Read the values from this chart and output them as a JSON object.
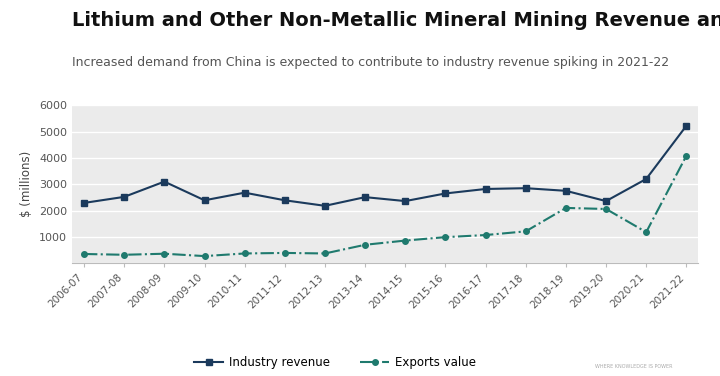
{
  "title": "Lithium and Other Non-Metallic Mineral Mining Revenue and Exports",
  "subtitle": "Increased demand from China is expected to contribute to industry revenue spiking in 2021-22",
  "ylabel": "$ (millions)",
  "fig_bg_color": "#ffffff",
  "plot_bg_color": "#ebebeb",
  "categories": [
    "2006-07",
    "2007-08",
    "2008-09",
    "2009-10",
    "2010-11",
    "2011-12",
    "2012-13",
    "2013-14",
    "2014-15",
    "2015-16",
    "2016-17",
    "2017-18",
    "2018-19",
    "2019-20",
    "2020-21",
    "2021-22"
  ],
  "industry_revenue": [
    2290,
    2520,
    3100,
    2390,
    2680,
    2390,
    2180,
    2510,
    2360,
    2650,
    2820,
    2850,
    2750,
    2360,
    3200,
    5220
  ],
  "exports_value": [
    350,
    320,
    360,
    270,
    370,
    390,
    370,
    700,
    860,
    990,
    1070,
    1210,
    2100,
    2060,
    1180,
    4080
  ],
  "revenue_color": "#1b3a5c",
  "exports_color": "#1f7a6e",
  "ylim": [
    0,
    6000
  ],
  "yticks": [
    0,
    1000,
    2000,
    3000,
    4000,
    5000,
    6000
  ],
  "legend_revenue": "Industry revenue",
  "legend_exports": "Exports value",
  "title_fontsize": 14,
  "subtitle_fontsize": 9
}
